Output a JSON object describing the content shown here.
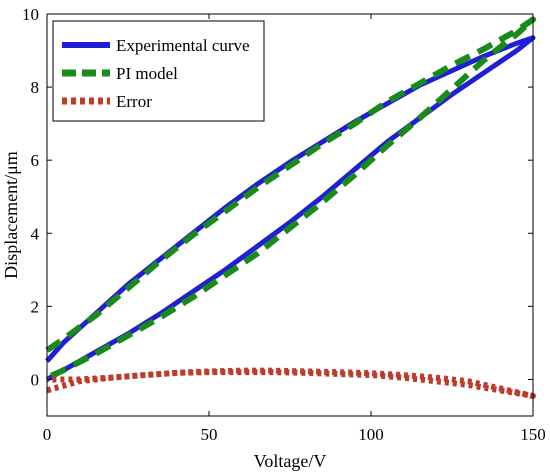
{
  "chart_data": {
    "type": "line",
    "xlabel": "Voltage/V",
    "ylabel": "Displacement/μm",
    "xlim": [
      0,
      150
    ],
    "ylim": [
      -1,
      10
    ],
    "xticks": [
      0,
      50,
      100,
      150
    ],
    "yticks": [
      0,
      2,
      4,
      6,
      8,
      10
    ],
    "grid": false,
    "legend_position": "top-left",
    "series": [
      {
        "name": "Experimental curve",
        "color": "#1f1fd6",
        "style": "solid",
        "x": [
          0,
          5,
          15,
          25,
          35,
          45,
          55,
          65,
          75,
          85,
          95,
          105,
          115,
          125,
          135,
          145,
          150,
          145,
          135,
          125,
          115,
          105,
          95,
          85,
          75,
          65,
          55,
          45,
          35,
          25,
          15,
          5,
          0
        ],
        "y": [
          0.5,
          1.0,
          1.8,
          2.6,
          3.3,
          4.0,
          4.7,
          5.35,
          5.95,
          6.5,
          7.05,
          7.55,
          8.05,
          8.45,
          8.85,
          9.2,
          9.35,
          9.0,
          8.4,
          7.8,
          7.15,
          6.5,
          5.75,
          5.0,
          4.3,
          3.65,
          3.0,
          2.4,
          1.8,
          1.25,
          0.75,
          0.25,
          0.0
        ]
      },
      {
        "name": "PI model",
        "color": "#1a8a1a",
        "style": "dashed",
        "x": [
          0,
          5,
          15,
          25,
          35,
          45,
          55,
          65,
          75,
          85,
          95,
          105,
          115,
          125,
          135,
          145,
          150,
          145,
          135,
          125,
          115,
          105,
          95,
          85,
          75,
          65,
          55,
          45,
          35,
          25,
          15,
          5,
          0
        ],
        "y": [
          0.8,
          1.1,
          1.75,
          2.5,
          3.25,
          3.95,
          4.6,
          5.25,
          5.85,
          6.45,
          7.0,
          7.6,
          8.1,
          8.6,
          9.05,
          9.55,
          9.85,
          9.45,
          8.75,
          7.95,
          7.15,
          6.4,
          5.6,
          4.85,
          4.15,
          3.45,
          2.85,
          2.25,
          1.7,
          1.2,
          0.7,
          0.25,
          0.05
        ]
      },
      {
        "name": "Error",
        "color": "#c0392b",
        "style": "dotted",
        "x": [
          0,
          10,
          20,
          30,
          40,
          50,
          60,
          70,
          80,
          90,
          100,
          110,
          120,
          130,
          140,
          150,
          140,
          130,
          120,
          110,
          100,
          90,
          80,
          70,
          60,
          50,
          40,
          30,
          20,
          10,
          0
        ],
        "y": [
          -0.3,
          -0.05,
          0.05,
          0.12,
          0.18,
          0.2,
          0.2,
          0.2,
          0.18,
          0.15,
          0.12,
          0.05,
          -0.05,
          -0.15,
          -0.3,
          -0.45,
          -0.25,
          -0.05,
          0.05,
          0.12,
          0.17,
          0.2,
          0.22,
          0.24,
          0.24,
          0.22,
          0.18,
          0.12,
          0.05,
          0.0,
          0.0
        ]
      }
    ]
  }
}
